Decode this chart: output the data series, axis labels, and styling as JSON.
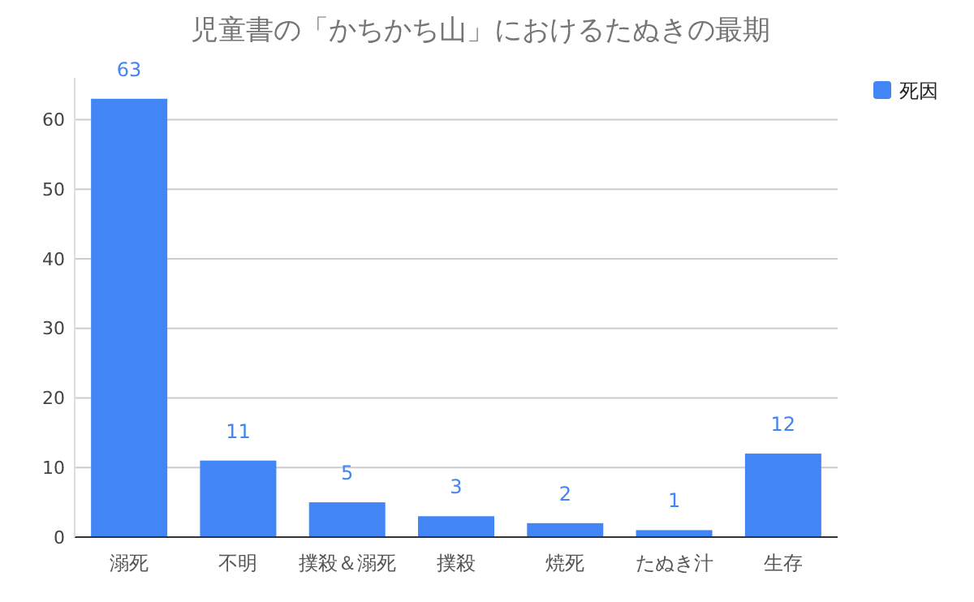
{
  "chart_data": {
    "type": "bar",
    "title": "児童書の「かちかち山」におけるたぬきの最期",
    "categories": [
      "溺死",
      "不明",
      "撲殺＆溺死",
      "撲殺",
      "焼死",
      "たぬき汁",
      "生存"
    ],
    "series": [
      {
        "name": "死因",
        "color": "#4285f4",
        "values": [
          63,
          11,
          5,
          3,
          2,
          1,
          12
        ]
      }
    ],
    "ylim": [
      0,
      66
    ],
    "yticks": [
      0,
      10,
      20,
      30,
      40,
      50,
      60
    ],
    "grid": "y",
    "legend": "top right",
    "data_labels": true
  }
}
